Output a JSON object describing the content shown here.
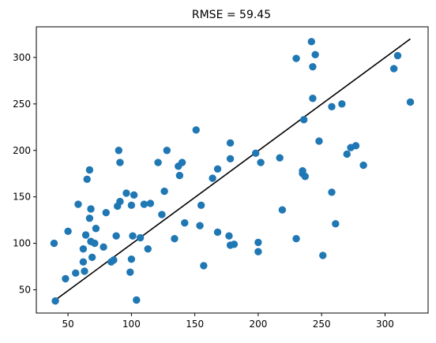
{
  "chart_data": {
    "type": "scatter",
    "title": "RMSE = 59.45",
    "xlabel": "",
    "ylabel": "",
    "xlim": [
      25,
      334
    ],
    "ylim": [
      25,
      333
    ],
    "xticks": [
      50,
      100,
      150,
      200,
      250,
      300
    ],
    "yticks": [
      50,
      100,
      150,
      200,
      250,
      300
    ],
    "grid": false,
    "colors": {
      "points": "#1f77b4",
      "fit_line": "#000000"
    },
    "points": [
      [
        39,
        100
      ],
      [
        40,
        38
      ],
      [
        48,
        62
      ],
      [
        50,
        113
      ],
      [
        56,
        68
      ],
      [
        58,
        142
      ],
      [
        62,
        94
      ],
      [
        62,
        80
      ],
      [
        63,
        70
      ],
      [
        64,
        109
      ],
      [
        65,
        169
      ],
      [
        67,
        179
      ],
      [
        67,
        127
      ],
      [
        68,
        137
      ],
      [
        68,
        102
      ],
      [
        69,
        85
      ],
      [
        71,
        100
      ],
      [
        72,
        116
      ],
      [
        78,
        96
      ],
      [
        80,
        133
      ],
      [
        84,
        80
      ],
      [
        86,
        82
      ],
      [
        88,
        108
      ],
      [
        89,
        140
      ],
      [
        90,
        200
      ],
      [
        91,
        187
      ],
      [
        91,
        145
      ],
      [
        96,
        154
      ],
      [
        99,
        69
      ],
      [
        100,
        141
      ],
      [
        100,
        83
      ],
      [
        101,
        108
      ],
      [
        102,
        152
      ],
      [
        104,
        39
      ],
      [
        107,
        106
      ],
      [
        110,
        142
      ],
      [
        113,
        94
      ],
      [
        115,
        143
      ],
      [
        121,
        187
      ],
      [
        124,
        131
      ],
      [
        126,
        156
      ],
      [
        128,
        200
      ],
      [
        134,
        105
      ],
      [
        137,
        183
      ],
      [
        138,
        173
      ],
      [
        140,
        187
      ],
      [
        142,
        122
      ],
      [
        151,
        222
      ],
      [
        154,
        119
      ],
      [
        155,
        141
      ],
      [
        157,
        76
      ],
      [
        164,
        170
      ],
      [
        168,
        180
      ],
      [
        168,
        112
      ],
      [
        177,
        108
      ],
      [
        178,
        191
      ],
      [
        178,
        208
      ],
      [
        178,
        98
      ],
      [
        181,
        99
      ],
      [
        198,
        197
      ],
      [
        200,
        101
      ],
      [
        200,
        91
      ],
      [
        202,
        187
      ],
      [
        217,
        192
      ],
      [
        219,
        136
      ],
      [
        230,
        105
      ],
      [
        230,
        299
      ],
      [
        235,
        178
      ],
      [
        235,
        175
      ],
      [
        236,
        233
      ],
      [
        237,
        172
      ],
      [
        242,
        317
      ],
      [
        243,
        256
      ],
      [
        243,
        290
      ],
      [
        245,
        303
      ],
      [
        248,
        210
      ],
      [
        251,
        87
      ],
      [
        258,
        155
      ],
      [
        258,
        247
      ],
      [
        261,
        121
      ],
      [
        266,
        250
      ],
      [
        270,
        196
      ],
      [
        273,
        203
      ],
      [
        277,
        205
      ],
      [
        283,
        184
      ],
      [
        307,
        288
      ],
      [
        310,
        302
      ],
      [
        320,
        252
      ]
    ],
    "fit_line": {
      "x": [
        39,
        320
      ],
      "y": [
        38,
        320
      ]
    }
  }
}
